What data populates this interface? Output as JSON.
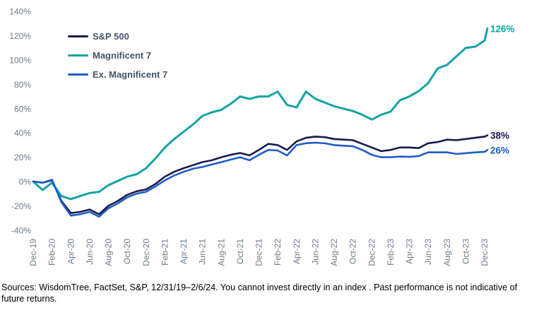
{
  "legend": {
    "items": [
      {
        "label": "S&P 500",
        "color": "#1A1A4E"
      },
      {
        "label": "Magnificent 7",
        "color": "#14A3A5"
      },
      {
        "label": "Ex. Magnificent 7",
        "color": "#1F5CC8"
      }
    ]
  },
  "chart_data": {
    "type": "line",
    "title": "",
    "xlabel": "",
    "ylabel": "",
    "grid": false,
    "legend_position": "upper-left",
    "ylim": [
      -40,
      140
    ],
    "y_tick_labels": [
      "140%",
      "120%",
      "100%",
      "80%",
      "60%",
      "40%",
      "20%",
      "0%",
      "-20%",
      "-40%"
    ],
    "x_tick_labels": [
      "Dec-19",
      "Feb-20",
      "Apr-20",
      "Jun-20",
      "Aug-20",
      "Oct-20",
      "Dec-20",
      "Feb-21",
      "Apr-21",
      "Jun-21",
      "Aug-21",
      "Oct-21",
      "Dec-21",
      "Feb-22",
      "Apr-22",
      "Jun-22",
      "Aug-22",
      "Oct-22",
      "Dec-22",
      "Feb-23",
      "Apr-23",
      "Jun-23",
      "Aug-23",
      "Oct-23",
      "Dec-23"
    ],
    "x_note": "monthly points from Dec-19 through Dec-23 plus final point 2/6/24",
    "series": [
      {
        "name": "S&P 500",
        "color": "#1A1A4E",
        "end_label": "38%",
        "values": [
          0,
          -1,
          1,
          -16,
          -26,
          -25,
          -23,
          -27,
          -20,
          -16,
          -11,
          -8,
          -6.5,
          -2,
          4,
          8,
          11,
          13.5,
          16,
          17.5,
          20,
          22,
          23.5,
          21.5,
          26,
          31,
          30,
          26,
          33,
          36,
          37,
          36.5,
          35,
          34.5,
          34,
          31,
          28,
          25,
          26,
          28,
          28,
          27.5,
          31.5,
          32.5,
          34.5,
          34,
          35,
          36,
          37,
          38
        ]
      },
      {
        "name": "Magnificent 7",
        "color": "#14A3A5",
        "end_label": "126%",
        "values": [
          0,
          -7,
          -1,
          -12,
          -14.5,
          -12,
          -9.5,
          -8.5,
          -3,
          0.5,
          4,
          6,
          11,
          19,
          28,
          35,
          41,
          47,
          54,
          57,
          59,
          64,
          70,
          68,
          70,
          70,
          74,
          63,
          61,
          74,
          68,
          65,
          62,
          60,
          58,
          55,
          51,
          55,
          57.5,
          67,
          70,
          74.5,
          81,
          93,
          96,
          103,
          110,
          111,
          116,
          126
        ]
      },
      {
        "name": "Ex. Magnificent 7",
        "color": "#1F5CC8",
        "end_label": "26%",
        "values": [
          0,
          -1,
          1.5,
          -17,
          -28,
          -27,
          -25,
          -29,
          -22,
          -18,
          -13,
          -10,
          -8.5,
          -4,
          1,
          5,
          8,
          10.5,
          12,
          14,
          16,
          18,
          20,
          17.5,
          22,
          26,
          25.5,
          21.5,
          30,
          31.5,
          32,
          31.5,
          30,
          29.5,
          29,
          26,
          22,
          20,
          20,
          20.5,
          20.3,
          21,
          24,
          24,
          24,
          22.7,
          23.3,
          24,
          24.4,
          26
        ]
      }
    ]
  },
  "footnote": "Sources: WisdomTree, FactSet, S&P, 12/31/19–2/6/24. You cannot invest directly in an index . Past performance is not indicative of future returns."
}
